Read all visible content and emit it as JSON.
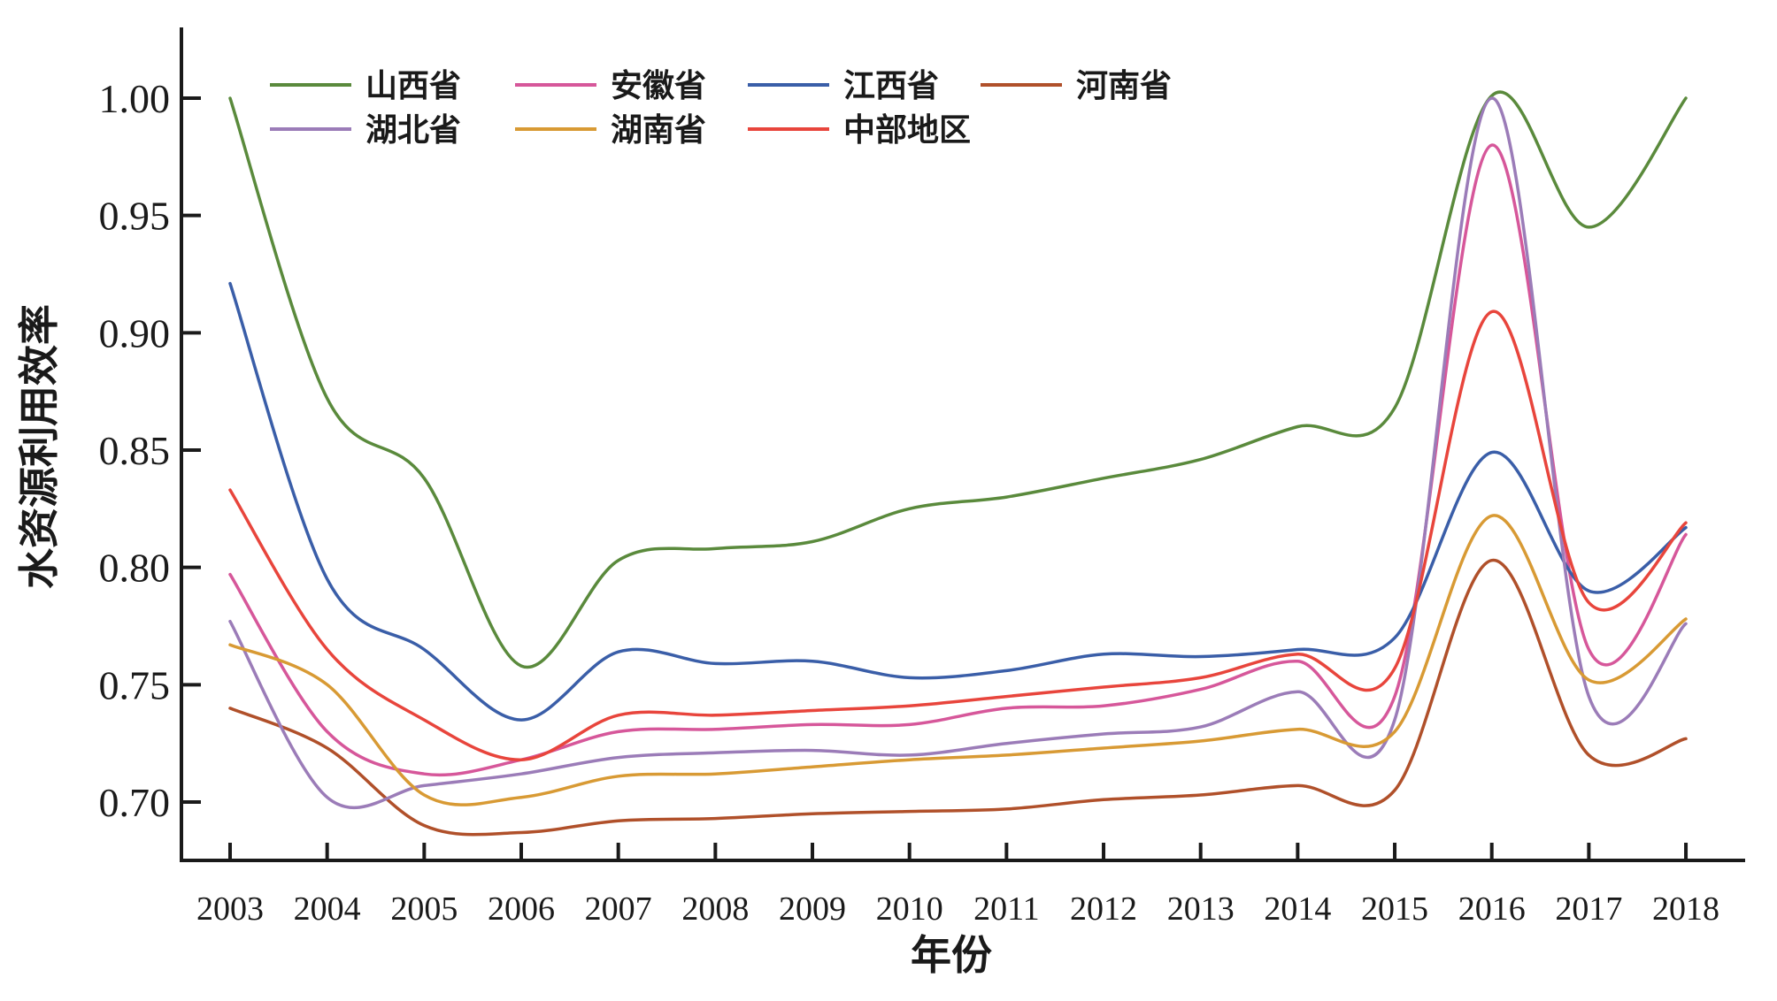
{
  "chart_data": {
    "type": "line",
    "title": "",
    "xlabel": "年份",
    "ylabel": "水资源利用效率",
    "x": [
      2003,
      2004,
      2005,
      2006,
      2007,
      2008,
      2009,
      2010,
      2011,
      2012,
      2013,
      2014,
      2015,
      2016,
      2017,
      2018
    ],
    "x_tick_labels": [
      "2003",
      "2004",
      "2005",
      "2006",
      "2007",
      "2008",
      "2009",
      "2010",
      "2011",
      "2012",
      "2013",
      "2014",
      "2015",
      "2016",
      "2017",
      "2018"
    ],
    "y_ticks": [
      0.7,
      0.75,
      0.8,
      0.85,
      0.9,
      0.95,
      1.0
    ],
    "y_tick_labels": [
      "0.70",
      "0.75",
      "0.80",
      "0.85",
      "0.90",
      "0.95",
      "1.00"
    ],
    "ylim": [
      0.68,
      1.03
    ],
    "xlim": [
      2001.9,
      2018.6
    ],
    "grid": false,
    "smooth": true,
    "legend_position": "top-left",
    "legend_columns": 4,
    "series": [
      {
        "name": "山西省",
        "color": "#5a8a3c",
        "values": [
          1.0,
          0.872,
          0.838,
          0.758,
          0.803,
          0.808,
          0.811,
          0.825,
          0.83,
          0.838,
          0.846,
          0.86,
          0.868,
          1.001,
          0.945,
          1.0
        ]
      },
      {
        "name": "安徽省",
        "color": "#d6579a",
        "values": [
          0.797,
          0.73,
          0.712,
          0.718,
          0.73,
          0.731,
          0.733,
          0.733,
          0.74,
          0.741,
          0.748,
          0.76,
          0.745,
          0.98,
          0.765,
          0.814
        ]
      },
      {
        "name": "江西省",
        "color": "#3a5ea8",
        "values": [
          0.921,
          0.795,
          0.765,
          0.735,
          0.764,
          0.759,
          0.76,
          0.753,
          0.756,
          0.763,
          0.762,
          0.765,
          0.77,
          0.849,
          0.79,
          0.817
        ]
      },
      {
        "name": "河南省",
        "color": "#b0502a",
        "values": [
          0.74,
          0.723,
          0.69,
          0.687,
          0.692,
          0.693,
          0.695,
          0.696,
          0.697,
          0.701,
          0.703,
          0.707,
          0.705,
          0.803,
          0.72,
          0.727
        ]
      },
      {
        "name": "湖北省",
        "color": "#9b7cb8",
        "values": [
          0.777,
          0.702,
          0.707,
          0.712,
          0.719,
          0.721,
          0.722,
          0.72,
          0.725,
          0.729,
          0.732,
          0.747,
          0.735,
          1.0,
          0.745,
          0.776
        ]
      },
      {
        "name": "湖南省",
        "color": "#d89a34",
        "values": [
          0.767,
          0.75,
          0.703,
          0.702,
          0.711,
          0.712,
          0.715,
          0.718,
          0.72,
          0.723,
          0.726,
          0.731,
          0.73,
          0.822,
          0.752,
          0.778
        ]
      },
      {
        "name": "中部地区",
        "color": "#e8453c",
        "values": [
          0.833,
          0.765,
          0.735,
          0.718,
          0.737,
          0.737,
          0.739,
          0.741,
          0.745,
          0.749,
          0.753,
          0.763,
          0.757,
          0.909,
          0.785,
          0.819
        ]
      }
    ]
  }
}
